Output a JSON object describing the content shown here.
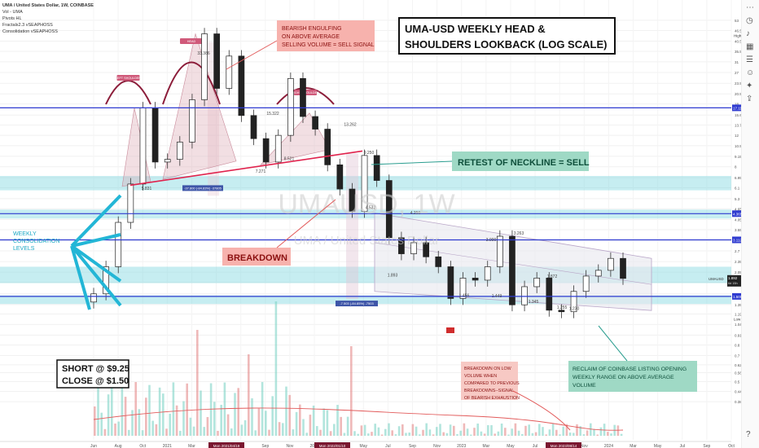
{
  "legend": {
    "symbol": "UMA / United States Dollar, 1W, COINBASE",
    "indicators": [
      "Vol - UMA",
      "Pivots HL",
      "Fractals2.3 vSEAPHOSS",
      "Consolidation vSEAPHOSS"
    ]
  },
  "watermark": {
    "symbol": "UMAUSD, 1W",
    "name": "UMA / United States Dollar"
  },
  "title_box": {
    "line1": "UMA-USD WEEKLY HEAD &",
    "line2": "SHOULDERS LOOKBACK (LOG SCALE)"
  },
  "annotations": {
    "bearish_engulfing": [
      "BEARISH ENGULFING",
      "ON ABOVE AVERAGE",
      "SELLING VOLUME = SELL SIGNAL"
    ],
    "retest": "RETEST OF NECKLINE = SELL",
    "breakdown": "BREAKDOWN",
    "weekly_consolidation": [
      "WEEKLY",
      "CONSOLIDATION",
      "LEVELS"
    ],
    "short_close": [
      "SHORT @ $9.25",
      "CLOSE @ $1.50"
    ],
    "reclaim": [
      "RECLAIM OF COINBASE LISTING OPENING",
      "WEEKLY RANGE ON ABOVE AVERAGE",
      "VOLUME"
    ],
    "breakdown_low_volume": [
      "BREAKDOWN ON LOW",
      "VOLUME WHEN",
      "COMPARED TO PREVIOUS",
      "BREAKDOWNS--SIGNAL",
      "OF BEARISH EXHAUSTION"
    ],
    "measure_top": "-37.800 (-84.83%) -37805",
    "measure_bottom": "-7.503 (-84.85%) -7503",
    "pattern_labels": [
      "LEFT SHOULDER",
      "HEAD",
      "RIGHT SHOULDER"
    ]
  },
  "price_labels": [
    "33.386",
    "15.322",
    "13.262",
    "9.250",
    "8.521",
    "7.271",
    "5.831",
    "4.532",
    "4.250",
    "3.263",
    "3.000",
    "1.872",
    "1.893",
    "1.456",
    "1.449",
    "1.345",
    "1.255",
    "1.230"
  ],
  "axis_tags": {
    "high": "High",
    "low": "Low",
    "current": "1.892",
    "current_sub": "UMAUSD",
    "countdown": "6d 15h",
    "neckline_a": "17.115",
    "neckline_b": "4.365",
    "neckline_c": "3.112",
    "neckline_d": "1.500",
    "peak": "44.489",
    "trough": "1.193"
  },
  "date_tags": [
    "Mon 2021/04/19",
    "Mon 2022/01/10",
    "Mon 2023/08/14"
  ],
  "toolbar_icons": [
    "ellipsis-icon",
    "clock-icon",
    "bell-icon",
    "grid-icon",
    "list-icon",
    "user-icon",
    "bulb-icon",
    "share-icon",
    "question-icon"
  ],
  "chart_data": {
    "type": "candlestick",
    "title": "UMA / United States Dollar, 1W, COINBASE",
    "y_scale": "log",
    "ylim": [
      0.34,
      62
    ],
    "y_ticks": [
      0.385,
      0.44,
      0.5,
      0.56,
      0.62,
      0.7,
      0.8,
      0.91,
      1.045,
      1.195,
      1.35,
      1.55,
      1.8,
      2.05,
      2.35,
      2.7,
      3.1,
      3.55,
      4.05,
      4.65,
      5.3,
      6.1,
      6.95,
      8.0,
      9.15,
      10.5,
      12.0,
      13.7,
      15.6,
      18.0,
      20.5,
      23.5,
      27.0,
      31.0,
      35.5,
      40.5,
      46.5,
      53.0
    ],
    "x_ticks": [
      "Jun",
      "Aug",
      "Oct",
      "2021",
      "Mar",
      "May",
      "Jul",
      "Sep",
      "Nov",
      "2022",
      "Mar",
      "May",
      "Jul",
      "Sep",
      "Nov",
      "2023",
      "Mar",
      "May",
      "Jul",
      "Sep",
      "Nov",
      "2024",
      "Mar",
      "May",
      "Jul",
      "Sep",
      "Oct"
    ],
    "key_levels": [
      {
        "name": "Neckline",
        "value": 17.115
      },
      {
        "name": "Consolidation top",
        "value": 4.365
      },
      {
        "name": "Consolidation mid",
        "value": 3.112
      },
      {
        "name": "Consolidation low",
        "value": 1.5
      }
    ],
    "series": [
      {
        "name": "UMAUSD weekly close",
        "points": [
          [
            "2020-05",
            1.55
          ],
          [
            "2020-06",
            2.2
          ],
          [
            "2020-07",
            3.9
          ],
          [
            "2020-08",
            6.4
          ],
          [
            "2020-09",
            17.1
          ],
          [
            "2020-10",
            8.5
          ],
          [
            "2020-11",
            8.8
          ],
          [
            "2020-12",
            11.0
          ],
          [
            "2021-01",
            19.0
          ],
          [
            "2021-02",
            44.5
          ],
          [
            "2021-03",
            22.0
          ],
          [
            "2021-04",
            33.4
          ],
          [
            "2021-05",
            15.5
          ],
          [
            "2021-06",
            11.5
          ],
          [
            "2021-07",
            8.5
          ],
          [
            "2021-08",
            12.0
          ],
          [
            "2021-09",
            25.0
          ],
          [
            "2021-10",
            15.3
          ],
          [
            "2021-11",
            13.0
          ],
          [
            "2021-12",
            8.2
          ],
          [
            "2022-01",
            6.0
          ],
          [
            "2022-02",
            4.5
          ],
          [
            "2022-03",
            9.25
          ],
          [
            "2022-04",
            6.7
          ],
          [
            "2022-05",
            3.2
          ],
          [
            "2022-06",
            2.6
          ],
          [
            "2022-07",
            3.0
          ],
          [
            "2022-08",
            2.5
          ],
          [
            "2022-09",
            2.2
          ],
          [
            "2022-10",
            1.46
          ],
          [
            "2022-11",
            1.9
          ],
          [
            "2022-12",
            1.85
          ],
          [
            "2023-01",
            2.2
          ],
          [
            "2023-02",
            3.26
          ],
          [
            "2023-03",
            1.345
          ],
          [
            "2023-04",
            1.7
          ],
          [
            "2023-05",
            1.9
          ],
          [
            "2023-06",
            1.255
          ],
          [
            "2023-07",
            1.23
          ],
          [
            "2023-08",
            1.6
          ],
          [
            "2023-09",
            1.95
          ],
          [
            "2023-10",
            2.1
          ],
          [
            "2023-11",
            2.45
          ],
          [
            "2023-12",
            1.892
          ]
        ]
      }
    ]
  }
}
